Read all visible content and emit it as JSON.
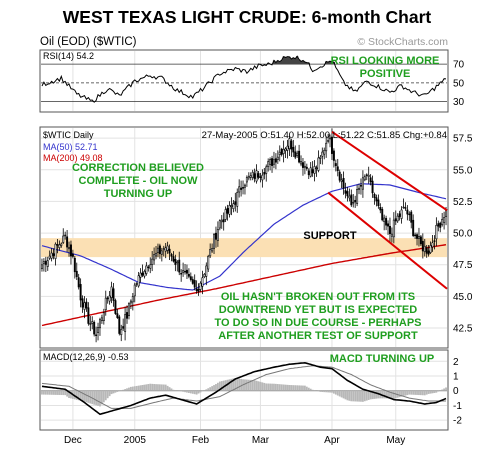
{
  "chart_data": {
    "type": "candlestick",
    "title": "WEST TEXAS LIGHT CRUDE: 6-month Chart",
    "subtitle": "Oil (EOD) ($WTIC)",
    "watermark": "© StockCharts.com",
    "x_labels": [
      {
        "label": "Dec",
        "index": 16
      },
      {
        "label": "2005",
        "index": 48
      },
      {
        "label": "Feb",
        "index": 82
      },
      {
        "label": "Mar",
        "index": 113
      },
      {
        "label": "Apr",
        "index": 150
      },
      {
        "label": "May",
        "index": 183
      }
    ],
    "n_bars": 210,
    "price_panel": {
      "header": "$WTIC Daily",
      "ohlc_text": "27-May-2005 O:51.40 H:52.00 L:51.22 C:51.85 Chg:+0.84",
      "legend": [
        {
          "label": "MA(50) 52.71",
          "color": "#3333cc"
        },
        {
          "label": "MA(200) 49.08",
          "color": "#cc0000"
        }
      ],
      "y_ticks": [
        "57.5",
        "55.0",
        "52.5",
        "50.0",
        "47.5",
        "45.0",
        "42.5"
      ],
      "ylim": [
        41.0,
        58.3
      ],
      "support_band": [
        48.1,
        49.6
      ],
      "support_label": "SUPPORT",
      "annotations": [
        "CORRECTION BELIEVED",
        "COMPLETE - OIL NOW",
        "TURNING UP",
        "OIL HASN'T BROKEN OUT FROM ITS",
        "DOWNTREND YET BUT IS EXPECTED",
        "TO DO SO IN DUE COURSE - PERHAPS",
        "AFTER ANOTHER TEST OF SUPPORT"
      ],
      "channel": {
        "upper": [
          {
            "x": 150,
            "y": 58.0
          },
          {
            "x": 210,
            "y": 51.8
          }
        ],
        "lower": [
          {
            "x": 148,
            "y": 53.2
          },
          {
            "x": 210,
            "y": 45.6
          }
        ]
      },
      "key_points": [
        {
          "x": 0,
          "y": 47.5
        },
        {
          "x": 6,
          "y": 48.6
        },
        {
          "x": 12,
          "y": 49.7
        },
        {
          "x": 16,
          "y": 48.0
        },
        {
          "x": 20,
          "y": 45.0
        },
        {
          "x": 24,
          "y": 43.2
        },
        {
          "x": 28,
          "y": 42.0
        },
        {
          "x": 32,
          "y": 44.0
        },
        {
          "x": 36,
          "y": 45.7
        },
        {
          "x": 40,
          "y": 42.2
        },
        {
          "x": 44,
          "y": 43.5
        },
        {
          "x": 48,
          "y": 45.8
        },
        {
          "x": 52,
          "y": 47.0
        },
        {
          "x": 56,
          "y": 47.9
        },
        {
          "x": 60,
          "y": 48.4
        },
        {
          "x": 64,
          "y": 48.9
        },
        {
          "x": 68,
          "y": 48.0
        },
        {
          "x": 72,
          "y": 47.0
        },
        {
          "x": 76,
          "y": 46.2
        },
        {
          "x": 80,
          "y": 45.4
        },
        {
          "x": 84,
          "y": 47.0
        },
        {
          "x": 88,
          "y": 49.0
        },
        {
          "x": 92,
          "y": 50.9
        },
        {
          "x": 96,
          "y": 51.6
        },
        {
          "x": 100,
          "y": 52.6
        },
        {
          "x": 104,
          "y": 54.0
        },
        {
          "x": 108,
          "y": 54.4
        },
        {
          "x": 112,
          "y": 54.7
        },
        {
          "x": 116,
          "y": 55.2
        },
        {
          "x": 120,
          "y": 55.8
        },
        {
          "x": 124,
          "y": 56.6
        },
        {
          "x": 128,
          "y": 57.2
        },
        {
          "x": 132,
          "y": 56.2
        },
        {
          "x": 136,
          "y": 55.3
        },
        {
          "x": 140,
          "y": 54.8
        },
        {
          "x": 144,
          "y": 55.8
        },
        {
          "x": 148,
          "y": 57.7
        },
        {
          "x": 152,
          "y": 55.6
        },
        {
          "x": 156,
          "y": 53.6
        },
        {
          "x": 160,
          "y": 52.2
        },
        {
          "x": 164,
          "y": 53.4
        },
        {
          "x": 168,
          "y": 54.6
        },
        {
          "x": 172,
          "y": 52.8
        },
        {
          "x": 176,
          "y": 51.0
        },
        {
          "x": 180,
          "y": 50.0
        },
        {
          "x": 184,
          "y": 51.2
        },
        {
          "x": 188,
          "y": 52.0
        },
        {
          "x": 192,
          "y": 50.2
        },
        {
          "x": 196,
          "y": 49.0
        },
        {
          "x": 200,
          "y": 48.6
        },
        {
          "x": 204,
          "y": 50.2
        },
        {
          "x": 209,
          "y": 51.85
        }
      ],
      "ma50": [
        {
          "x": 0,
          "y": 49.0
        },
        {
          "x": 20,
          "y": 48.2
        },
        {
          "x": 35,
          "y": 47.2
        },
        {
          "x": 50,
          "y": 46.1
        },
        {
          "x": 65,
          "y": 45.7
        },
        {
          "x": 78,
          "y": 45.5
        },
        {
          "x": 92,
          "y": 46.6
        },
        {
          "x": 105,
          "y": 48.6
        },
        {
          "x": 120,
          "y": 50.7
        },
        {
          "x": 135,
          "y": 52.2
        },
        {
          "x": 150,
          "y": 53.3
        },
        {
          "x": 165,
          "y": 53.9
        },
        {
          "x": 180,
          "y": 53.8
        },
        {
          "x": 195,
          "y": 53.2
        },
        {
          "x": 209,
          "y": 52.71
        }
      ],
      "ma200": [
        {
          "x": 0,
          "y": 42.7
        },
        {
          "x": 30,
          "y": 43.7
        },
        {
          "x": 60,
          "y": 44.7
        },
        {
          "x": 90,
          "y": 45.6
        },
        {
          "x": 120,
          "y": 46.6
        },
        {
          "x": 150,
          "y": 47.6
        },
        {
          "x": 180,
          "y": 48.4
        },
        {
          "x": 209,
          "y": 49.08
        }
      ]
    },
    "rsi_panel": {
      "header": "RSI(14) 54.2",
      "y_ticks": [
        "70",
        "50",
        "30"
      ],
      "ylim": [
        20,
        84
      ],
      "annotation": [
        "RSI LOOKING MORE",
        "POSITIVE"
      ],
      "key_points": [
        {
          "x": 0,
          "y": 48
        },
        {
          "x": 10,
          "y": 55
        },
        {
          "x": 18,
          "y": 38
        },
        {
          "x": 26,
          "y": 30
        },
        {
          "x": 34,
          "y": 44
        },
        {
          "x": 40,
          "y": 36
        },
        {
          "x": 48,
          "y": 52
        },
        {
          "x": 56,
          "y": 58
        },
        {
          "x": 62,
          "y": 55
        },
        {
          "x": 70,
          "y": 42
        },
        {
          "x": 78,
          "y": 35
        },
        {
          "x": 84,
          "y": 45
        },
        {
          "x": 92,
          "y": 60
        },
        {
          "x": 100,
          "y": 65
        },
        {
          "x": 106,
          "y": 62
        },
        {
          "x": 112,
          "y": 68
        },
        {
          "x": 118,
          "y": 70
        },
        {
          "x": 124,
          "y": 76
        },
        {
          "x": 130,
          "y": 78
        },
        {
          "x": 136,
          "y": 74
        },
        {
          "x": 140,
          "y": 64
        },
        {
          "x": 146,
          "y": 70
        },
        {
          "x": 150,
          "y": 74
        },
        {
          "x": 156,
          "y": 50
        },
        {
          "x": 162,
          "y": 40
        },
        {
          "x": 168,
          "y": 52
        },
        {
          "x": 174,
          "y": 46
        },
        {
          "x": 180,
          "y": 40
        },
        {
          "x": 186,
          "y": 47
        },
        {
          "x": 192,
          "y": 40
        },
        {
          "x": 198,
          "y": 36
        },
        {
          "x": 204,
          "y": 46
        },
        {
          "x": 209,
          "y": 54.2
        }
      ]
    },
    "macd_panel": {
      "header": "MACD(12,26,9) -0.53",
      "y_ticks": [
        "2",
        "1",
        "0",
        "-1",
        "-2"
      ],
      "ylim": [
        -2.6,
        2.7
      ],
      "annotation": "MACD TURNING UP",
      "macd": [
        {
          "x": 0,
          "y": 0.3
        },
        {
          "x": 12,
          "y": 0.1
        },
        {
          "x": 22,
          "y": -0.8
        },
        {
          "x": 30,
          "y": -1.6
        },
        {
          "x": 38,
          "y": -1.3
        },
        {
          "x": 46,
          "y": -1.0
        },
        {
          "x": 56,
          "y": -0.5
        },
        {
          "x": 64,
          "y": -0.3
        },
        {
          "x": 72,
          "y": -0.6
        },
        {
          "x": 80,
          "y": -0.9
        },
        {
          "x": 90,
          "y": -0.1
        },
        {
          "x": 100,
          "y": 0.8
        },
        {
          "x": 110,
          "y": 1.3
        },
        {
          "x": 120,
          "y": 1.6
        },
        {
          "x": 128,
          "y": 1.8
        },
        {
          "x": 136,
          "y": 1.9
        },
        {
          "x": 144,
          "y": 1.6
        },
        {
          "x": 150,
          "y": 1.5
        },
        {
          "x": 158,
          "y": 0.7
        },
        {
          "x": 166,
          "y": 0.1
        },
        {
          "x": 174,
          "y": -0.2
        },
        {
          "x": 182,
          "y": -0.6
        },
        {
          "x": 190,
          "y": -0.7
        },
        {
          "x": 198,
          "y": -0.9
        },
        {
          "x": 204,
          "y": -0.8
        },
        {
          "x": 209,
          "y": -0.53
        }
      ],
      "signal": [
        {
          "x": 0,
          "y": 0.5
        },
        {
          "x": 14,
          "y": 0.3
        },
        {
          "x": 26,
          "y": -0.5
        },
        {
          "x": 36,
          "y": -1.2
        },
        {
          "x": 46,
          "y": -1.2
        },
        {
          "x": 58,
          "y": -0.8
        },
        {
          "x": 68,
          "y": -0.5
        },
        {
          "x": 80,
          "y": -0.7
        },
        {
          "x": 92,
          "y": -0.4
        },
        {
          "x": 104,
          "y": 0.4
        },
        {
          "x": 116,
          "y": 1.1
        },
        {
          "x": 128,
          "y": 1.5
        },
        {
          "x": 140,
          "y": 1.7
        },
        {
          "x": 150,
          "y": 1.6
        },
        {
          "x": 160,
          "y": 1.1
        },
        {
          "x": 170,
          "y": 0.4
        },
        {
          "x": 180,
          "y": -0.1
        },
        {
          "x": 190,
          "y": -0.5
        },
        {
          "x": 200,
          "y": -0.7
        },
        {
          "x": 209,
          "y": -0.7
        }
      ]
    }
  }
}
